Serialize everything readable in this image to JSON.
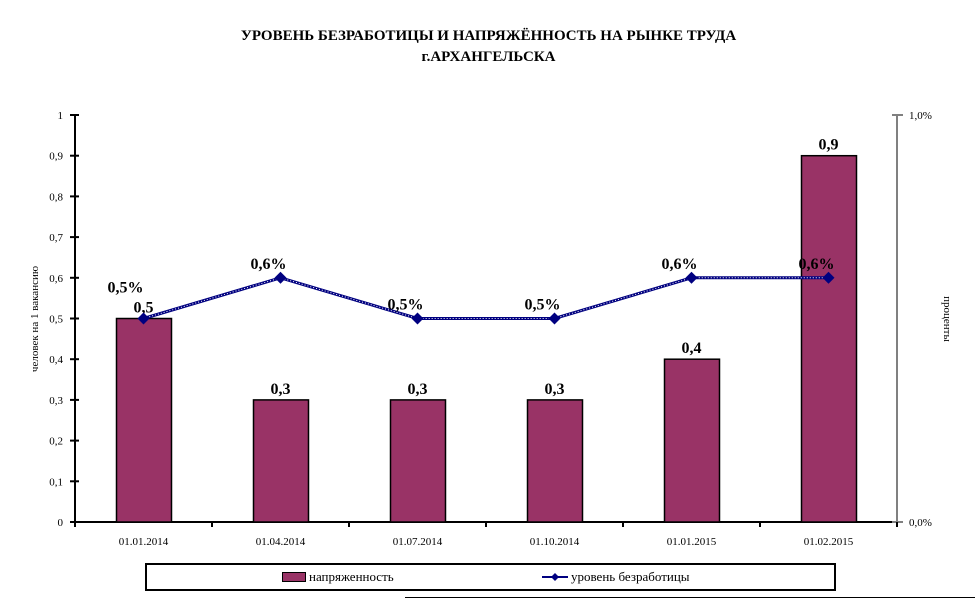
{
  "chart_data": {
    "type": "bar+line",
    "title_line1": "УРОВЕНЬ БЕЗРАБОТИЦЫ И НАПРЯЖЁННОСТЬ НА РЫНКЕ ТРУДА",
    "title_line2": "г.АРХАНГЕЛЬСКА",
    "categories": [
      "01.01.2014",
      "01.04.2014",
      "01.07.2014",
      "01.10.2014",
      "01.01.2015",
      "01.02.2015"
    ],
    "series": [
      {
        "name": "напряженность",
        "type": "bar",
        "axis": "left",
        "values": [
          0.5,
          0.3,
          0.3,
          0.3,
          0.4,
          0.9
        ],
        "labels": [
          "0,5",
          "0,3",
          "0,3",
          "0,3",
          "0,4",
          "0,9"
        ],
        "color": "#993366"
      },
      {
        "name": "уровень безработицы",
        "type": "line",
        "axis": "right",
        "values": [
          0.5,
          0.6,
          0.5,
          0.5,
          0.6,
          0.6
        ],
        "labels": [
          "0,5%",
          "0,6%",
          "0,5%",
          "0,5%",
          "0,6%",
          "0,6%"
        ],
        "color": "#000080"
      }
    ],
    "ylabel": "человек на 1 вакансию",
    "ylim": [
      0,
      1
    ],
    "yticks": [
      "0",
      "0,1",
      "0,2",
      "0,3",
      "0,4",
      "0,5",
      "0,6",
      "0,7",
      "0,8",
      "0,9",
      "1"
    ],
    "y2label": "проценты",
    "y2lim": [
      0,
      1
    ],
    "y2ticks": [
      "0,0%",
      "1,0%"
    ],
    "legend_position": "bottom"
  }
}
